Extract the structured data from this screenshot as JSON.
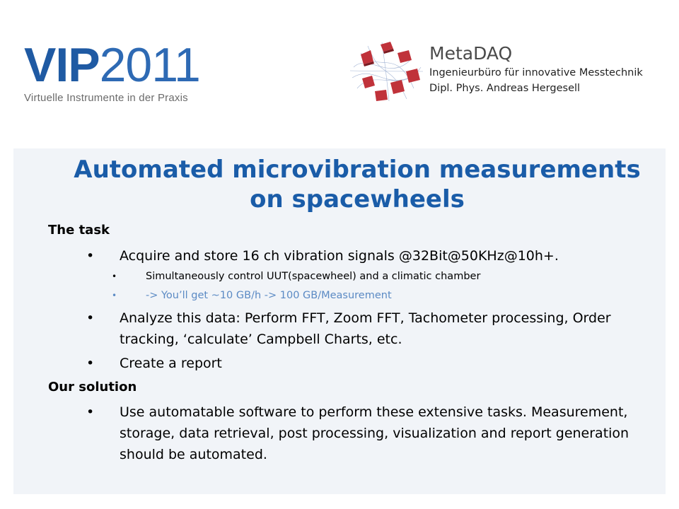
{
  "vip_logo": {
    "bold": "VIP",
    "year": "2011",
    "subtitle": "Virtuelle Instrumente in der Praxis"
  },
  "metadaq": {
    "title": "MetaDAQ",
    "line1": "Ingenieurbüro für innovative Messtechnik",
    "line2": "Dipl. Phys. Andreas Hergesell"
  },
  "slide": {
    "title_line1": "Automated microvibration measurements",
    "title_line2": "on spacewheels",
    "task_heading": "The task",
    "task_items": [
      "Acquire and store 16 ch vibration signals @32Bit@50KHz@10h+.",
      "Analyze this data: Perform FFT, Zoom FFT, Tachometer processing, Order tracking, ‘calculate’ Campbell Charts, etc.",
      "Create a report"
    ],
    "task_subitems": [
      "Simultaneously control UUT(spacewheel) and a climatic chamber",
      "-> You’ll get ~10 GB/h -> 100 GB/Measurement"
    ],
    "solution_heading": "Our solution",
    "solution_items": [
      "Use automatable software to perform these extensive tasks. Measurement, storage, data retrieval, post processing, visualization and report generation should be automated."
    ],
    "bullet": "•"
  },
  "colors": {
    "title_blue": "#1a5ca8",
    "vip_blue": "#1f5aa3",
    "panel_bg": "#f1f4f8",
    "subitem_light": "#5b8ac4"
  }
}
